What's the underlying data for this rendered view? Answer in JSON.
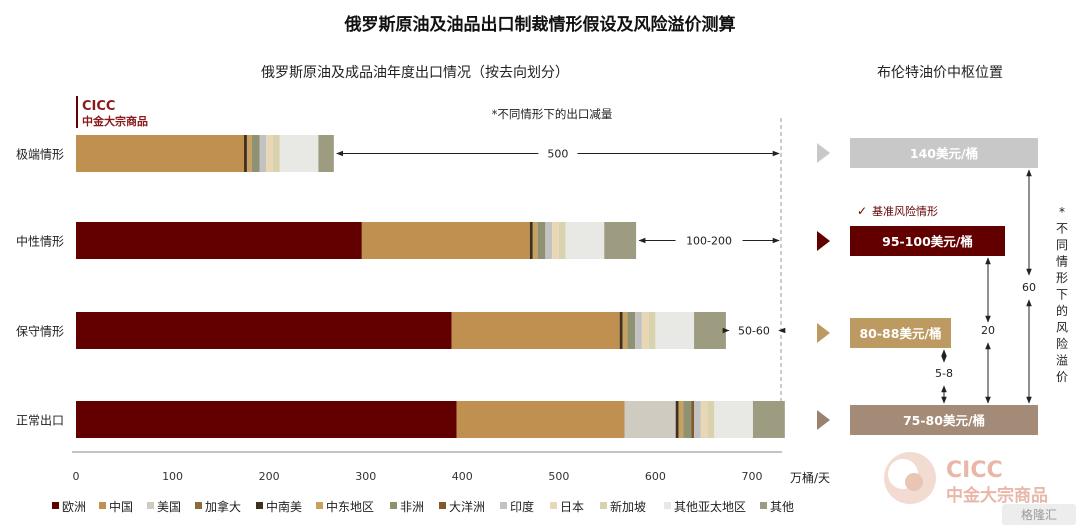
{
  "title": "俄罗斯原油及油品出口制裁情形假设及风险溢价测算",
  "brand": {
    "logo_en": "CICC",
    "logo_cn": "中金大宗商品",
    "watermark_en": "CICC",
    "watermark_cn": "中金大宗商品",
    "corner_mark": "格隆汇"
  },
  "chart_data": {
    "type": "bar",
    "orientation": "horizontal",
    "stacked": true,
    "title": "俄罗斯原油及成品油年度出口情况（按去向划分）",
    "subtitle": "*不同情形下的出口减量",
    "unit": "万桶/天",
    "categories": [
      "极端情形",
      "中性情形",
      "保守情形",
      "正常出口"
    ],
    "xlim": [
      0,
      740
    ],
    "xticks": [
      0,
      100,
      200,
      300,
      400,
      500,
      600,
      700
    ],
    "legend_position": "bottom",
    "series": [
      {
        "name": "欧洲",
        "color": "#620000",
        "values": [
          0,
          296,
          389,
          394
        ]
      },
      {
        "name": "中国",
        "color": "#C09050",
        "values": [
          174,
          174,
          174,
          174
        ]
      },
      {
        "name": "美国",
        "color": "#CFCBC0",
        "values": [
          0,
          0,
          0,
          53
        ]
      },
      {
        "name": "加拿大",
        "color": "#8B6A3E",
        "values": [
          0,
          0,
          0,
          0
        ]
      },
      {
        "name": "中南美",
        "color": "#3D3020",
        "values": [
          3,
          3,
          3,
          3
        ]
      },
      {
        "name": "中东地区",
        "color": "#C8A060",
        "values": [
          5,
          5,
          5,
          5
        ]
      },
      {
        "name": "非洲",
        "color": "#8F9272",
        "values": [
          8,
          8,
          8,
          8
        ]
      },
      {
        "name": "大洋洲",
        "color": "#7E5A2C",
        "values": [
          0,
          0,
          0,
          3
        ]
      },
      {
        "name": "印度",
        "color": "#C2C2C2",
        "values": [
          7,
          7,
          7,
          7
        ]
      },
      {
        "name": "日本",
        "color": "#E8D6B4",
        "values": [
          7,
          7,
          7,
          7
        ]
      },
      {
        "name": "新加坡",
        "color": "#D8D2AE",
        "values": [
          7,
          7,
          7,
          7
        ]
      },
      {
        "name": "其他亚太地区",
        "color": "#E8E8E4",
        "values": [
          40,
          40,
          40,
          40
        ]
      },
      {
        "name": "其他",
        "color": "#9E9C80",
        "values": [
          16,
          33,
          33,
          33
        ]
      }
    ],
    "reductions": [
      {
        "category": "极端情形",
        "label": "500"
      },
      {
        "category": "中性情形",
        "label": "100-200"
      },
      {
        "category": "保守情形",
        "label": "50-60"
      }
    ]
  },
  "brent": {
    "title": "布伦特油价中枢位置",
    "baseline_note": "基准风险情形",
    "check_mark": "✓",
    "boxes": [
      {
        "label": "140美元/桶",
        "color": "#C8C8C8",
        "arrow_color": "#C8C8C8"
      },
      {
        "label": "95-100美元/桶",
        "color": "#620000",
        "arrow_color": "#620000"
      },
      {
        "label": "80-88美元/桶",
        "color": "#BE9A63",
        "arrow_color": "#BE9A63"
      },
      {
        "label": "75-80美元/桶",
        "color": "#A48B78",
        "arrow_color": "#9A8170"
      }
    ],
    "spreads": [
      {
        "label": "5-8"
      },
      {
        "label": "20"
      },
      {
        "label": "60"
      }
    ],
    "vertical_note": "*不同情形下的风险溢价"
  }
}
